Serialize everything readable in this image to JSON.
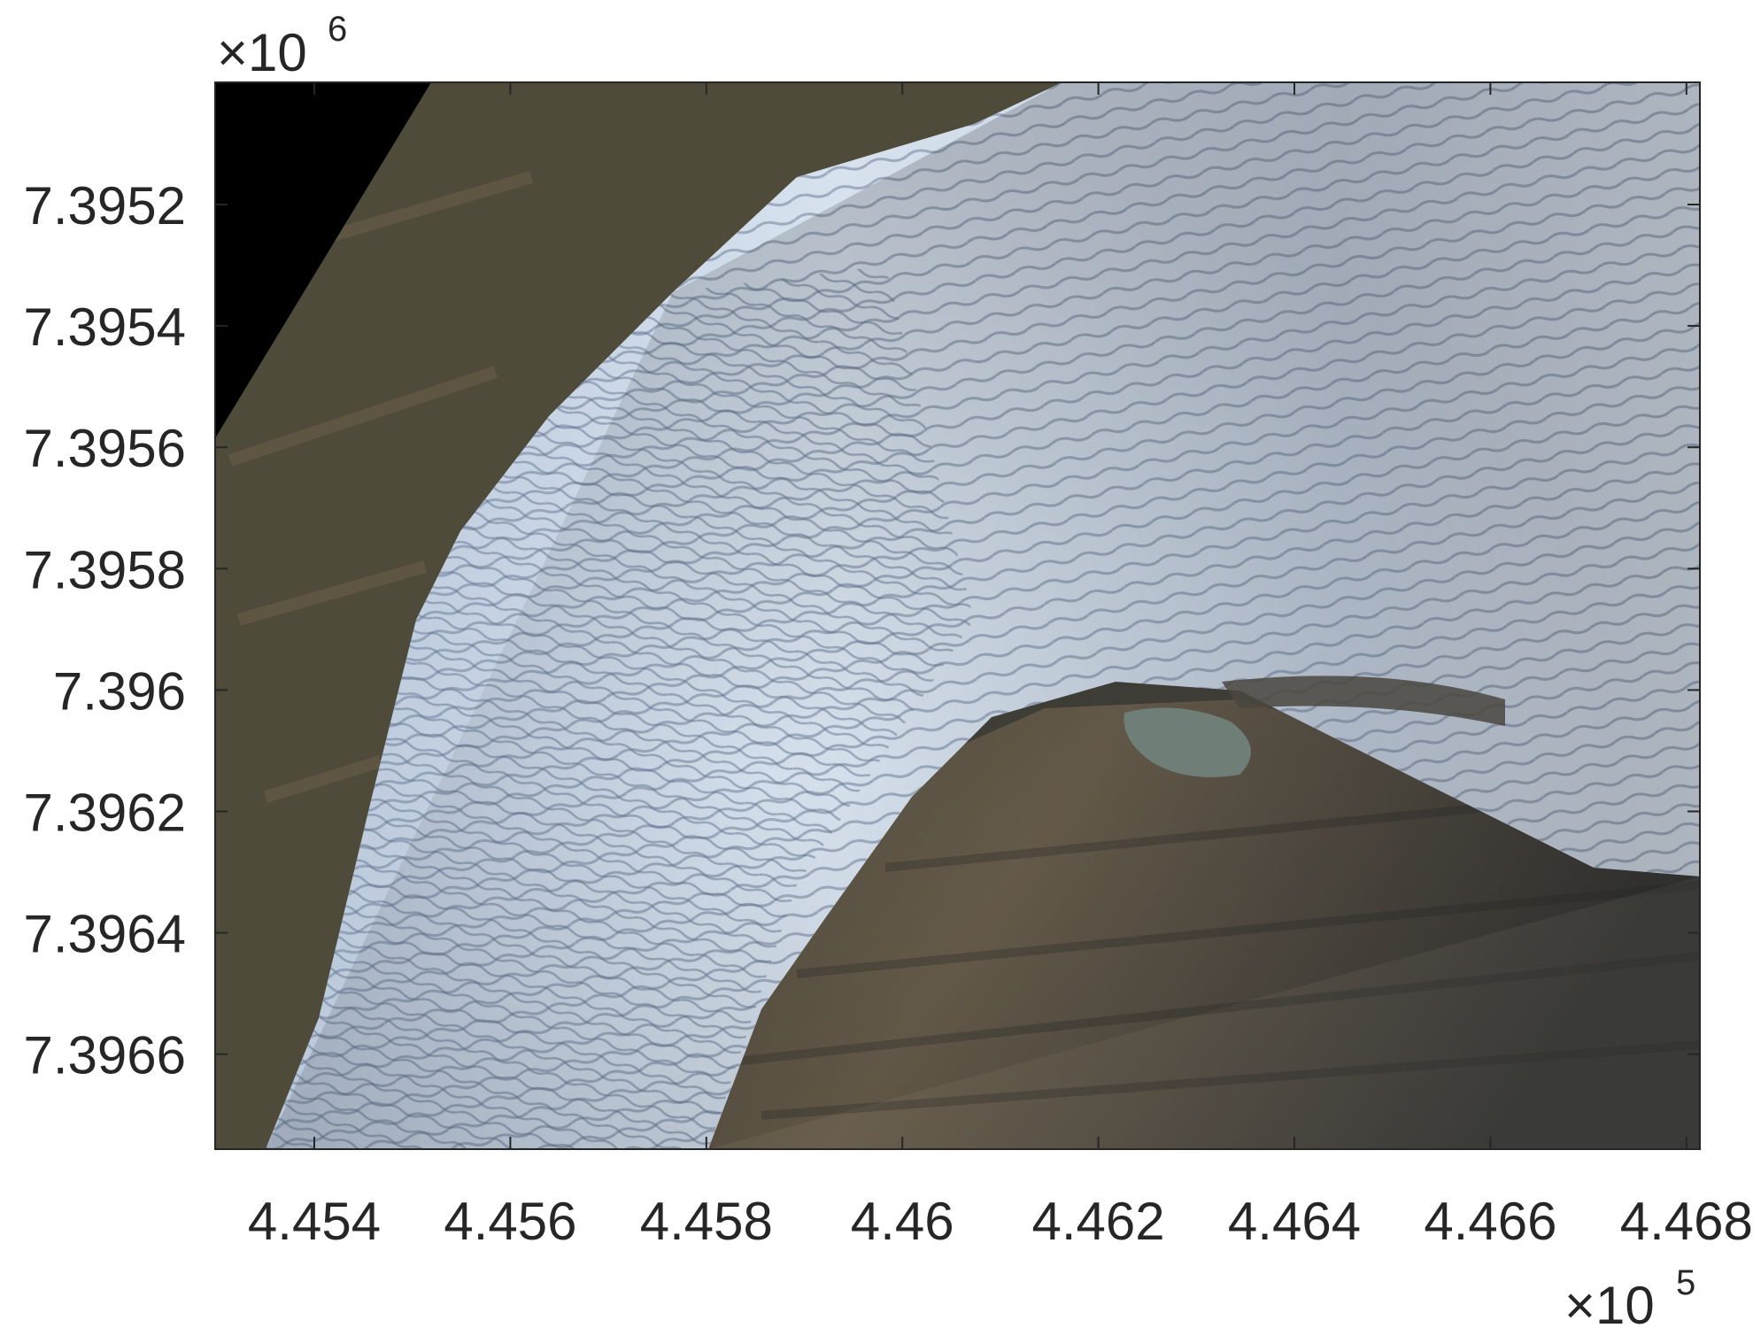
{
  "figure": {
    "x_ticks": [
      "4.454",
      "4.456",
      "4.458",
      "4.46",
      "4.462",
      "4.464",
      "4.466",
      "4.468"
    ],
    "y_ticks": [
      "7.3952",
      "7.3954",
      "7.3956",
      "7.3958",
      "7.396",
      "7.3962",
      "7.3964",
      "7.3966"
    ],
    "x_exponent": {
      "times": "×10",
      "power": "5"
    },
    "y_exponent": {
      "times": "×10",
      "power": "6"
    },
    "y_reversed": true,
    "image": "aerial photo of crevassed glacier flowing between dark rocky slopes, small meltwater lake at centre-right",
    "colors": {
      "ice": "#c9d6e6",
      "crevasse": "#6d7f99",
      "rock": "#4e4a3c",
      "nodata": "#000000",
      "axis": "#262626",
      "lake": "#6f7f78"
    }
  }
}
